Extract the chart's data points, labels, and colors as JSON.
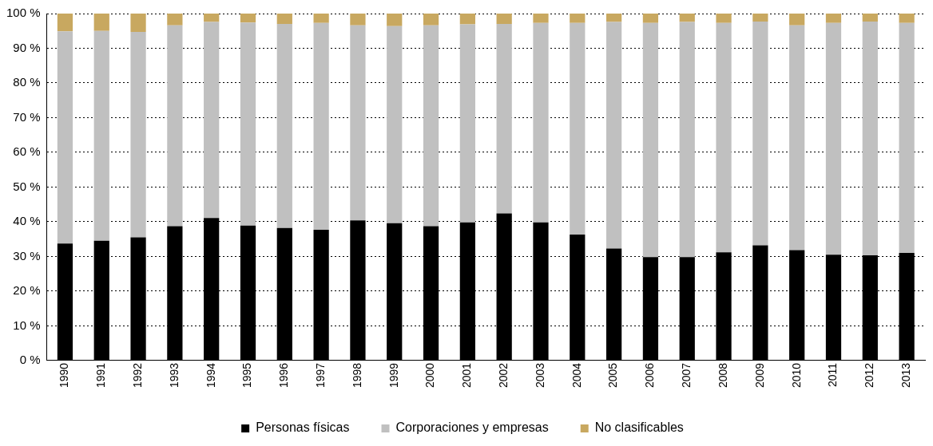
{
  "chart_data": {
    "type": "bar",
    "stacked": true,
    "categories": [
      "1990",
      "1991",
      "1992",
      "1993",
      "1994",
      "1995",
      "1996",
      "1997",
      "1998",
      "1999",
      "2000",
      "2001",
      "2002",
      "2003",
      "2004",
      "2005",
      "2006",
      "2007",
      "2008",
      "2009",
      "2010",
      "2011",
      "2012",
      "2013"
    ],
    "series": [
      {
        "name": "Personas físicas",
        "color": "#000000",
        "values": [
          33.7,
          34.5,
          35.5,
          38.7,
          41.1,
          38.9,
          38.2,
          37.7,
          40.4,
          39.6,
          38.7,
          39.8,
          42.4,
          39.8,
          36.3,
          32.3,
          29.8,
          29.8,
          31.2,
          33.2,
          31.8,
          30.5,
          30.3,
          31.0
        ]
      },
      {
        "name": "Corporaciones y empresas",
        "color": "#c0c0c0",
        "values": [
          61.2,
          60.5,
          59.2,
          57.9,
          56.5,
          58.5,
          58.8,
          59.6,
          56.2,
          56.8,
          57.9,
          57.1,
          54.6,
          57.5,
          61.0,
          65.3,
          67.5,
          67.8,
          66.1,
          64.5,
          64.8,
          66.8,
          67.4,
          66.3
        ]
      },
      {
        "name": "No clasificables",
        "color": "#c8a860",
        "values": [
          5.1,
          5.0,
          5.3,
          3.4,
          2.4,
          2.6,
          3.0,
          2.7,
          3.4,
          3.6,
          3.4,
          3.1,
          3.0,
          2.7,
          2.7,
          2.4,
          2.7,
          2.4,
          2.7,
          2.3,
          3.4,
          2.7,
          2.3,
          2.7
        ]
      }
    ],
    "ylim": [
      0,
      100
    ],
    "yticks": [
      {
        "value": 0,
        "label": "0 %"
      },
      {
        "value": 10,
        "label": "10 %"
      },
      {
        "value": 20,
        "label": "20 %"
      },
      {
        "value": 30,
        "label": "30 %"
      },
      {
        "value": 40,
        "label": "40 %"
      },
      {
        "value": 50,
        "label": "50 %"
      },
      {
        "value": 60,
        "label": "60 %"
      },
      {
        "value": 70,
        "label": "70 %"
      },
      {
        "value": 80,
        "label": "80 %"
      },
      {
        "value": 90,
        "label": "90 %"
      },
      {
        "value": 100,
        "label": "100 %"
      }
    ],
    "grid": "y",
    "legend": "bottom"
  }
}
